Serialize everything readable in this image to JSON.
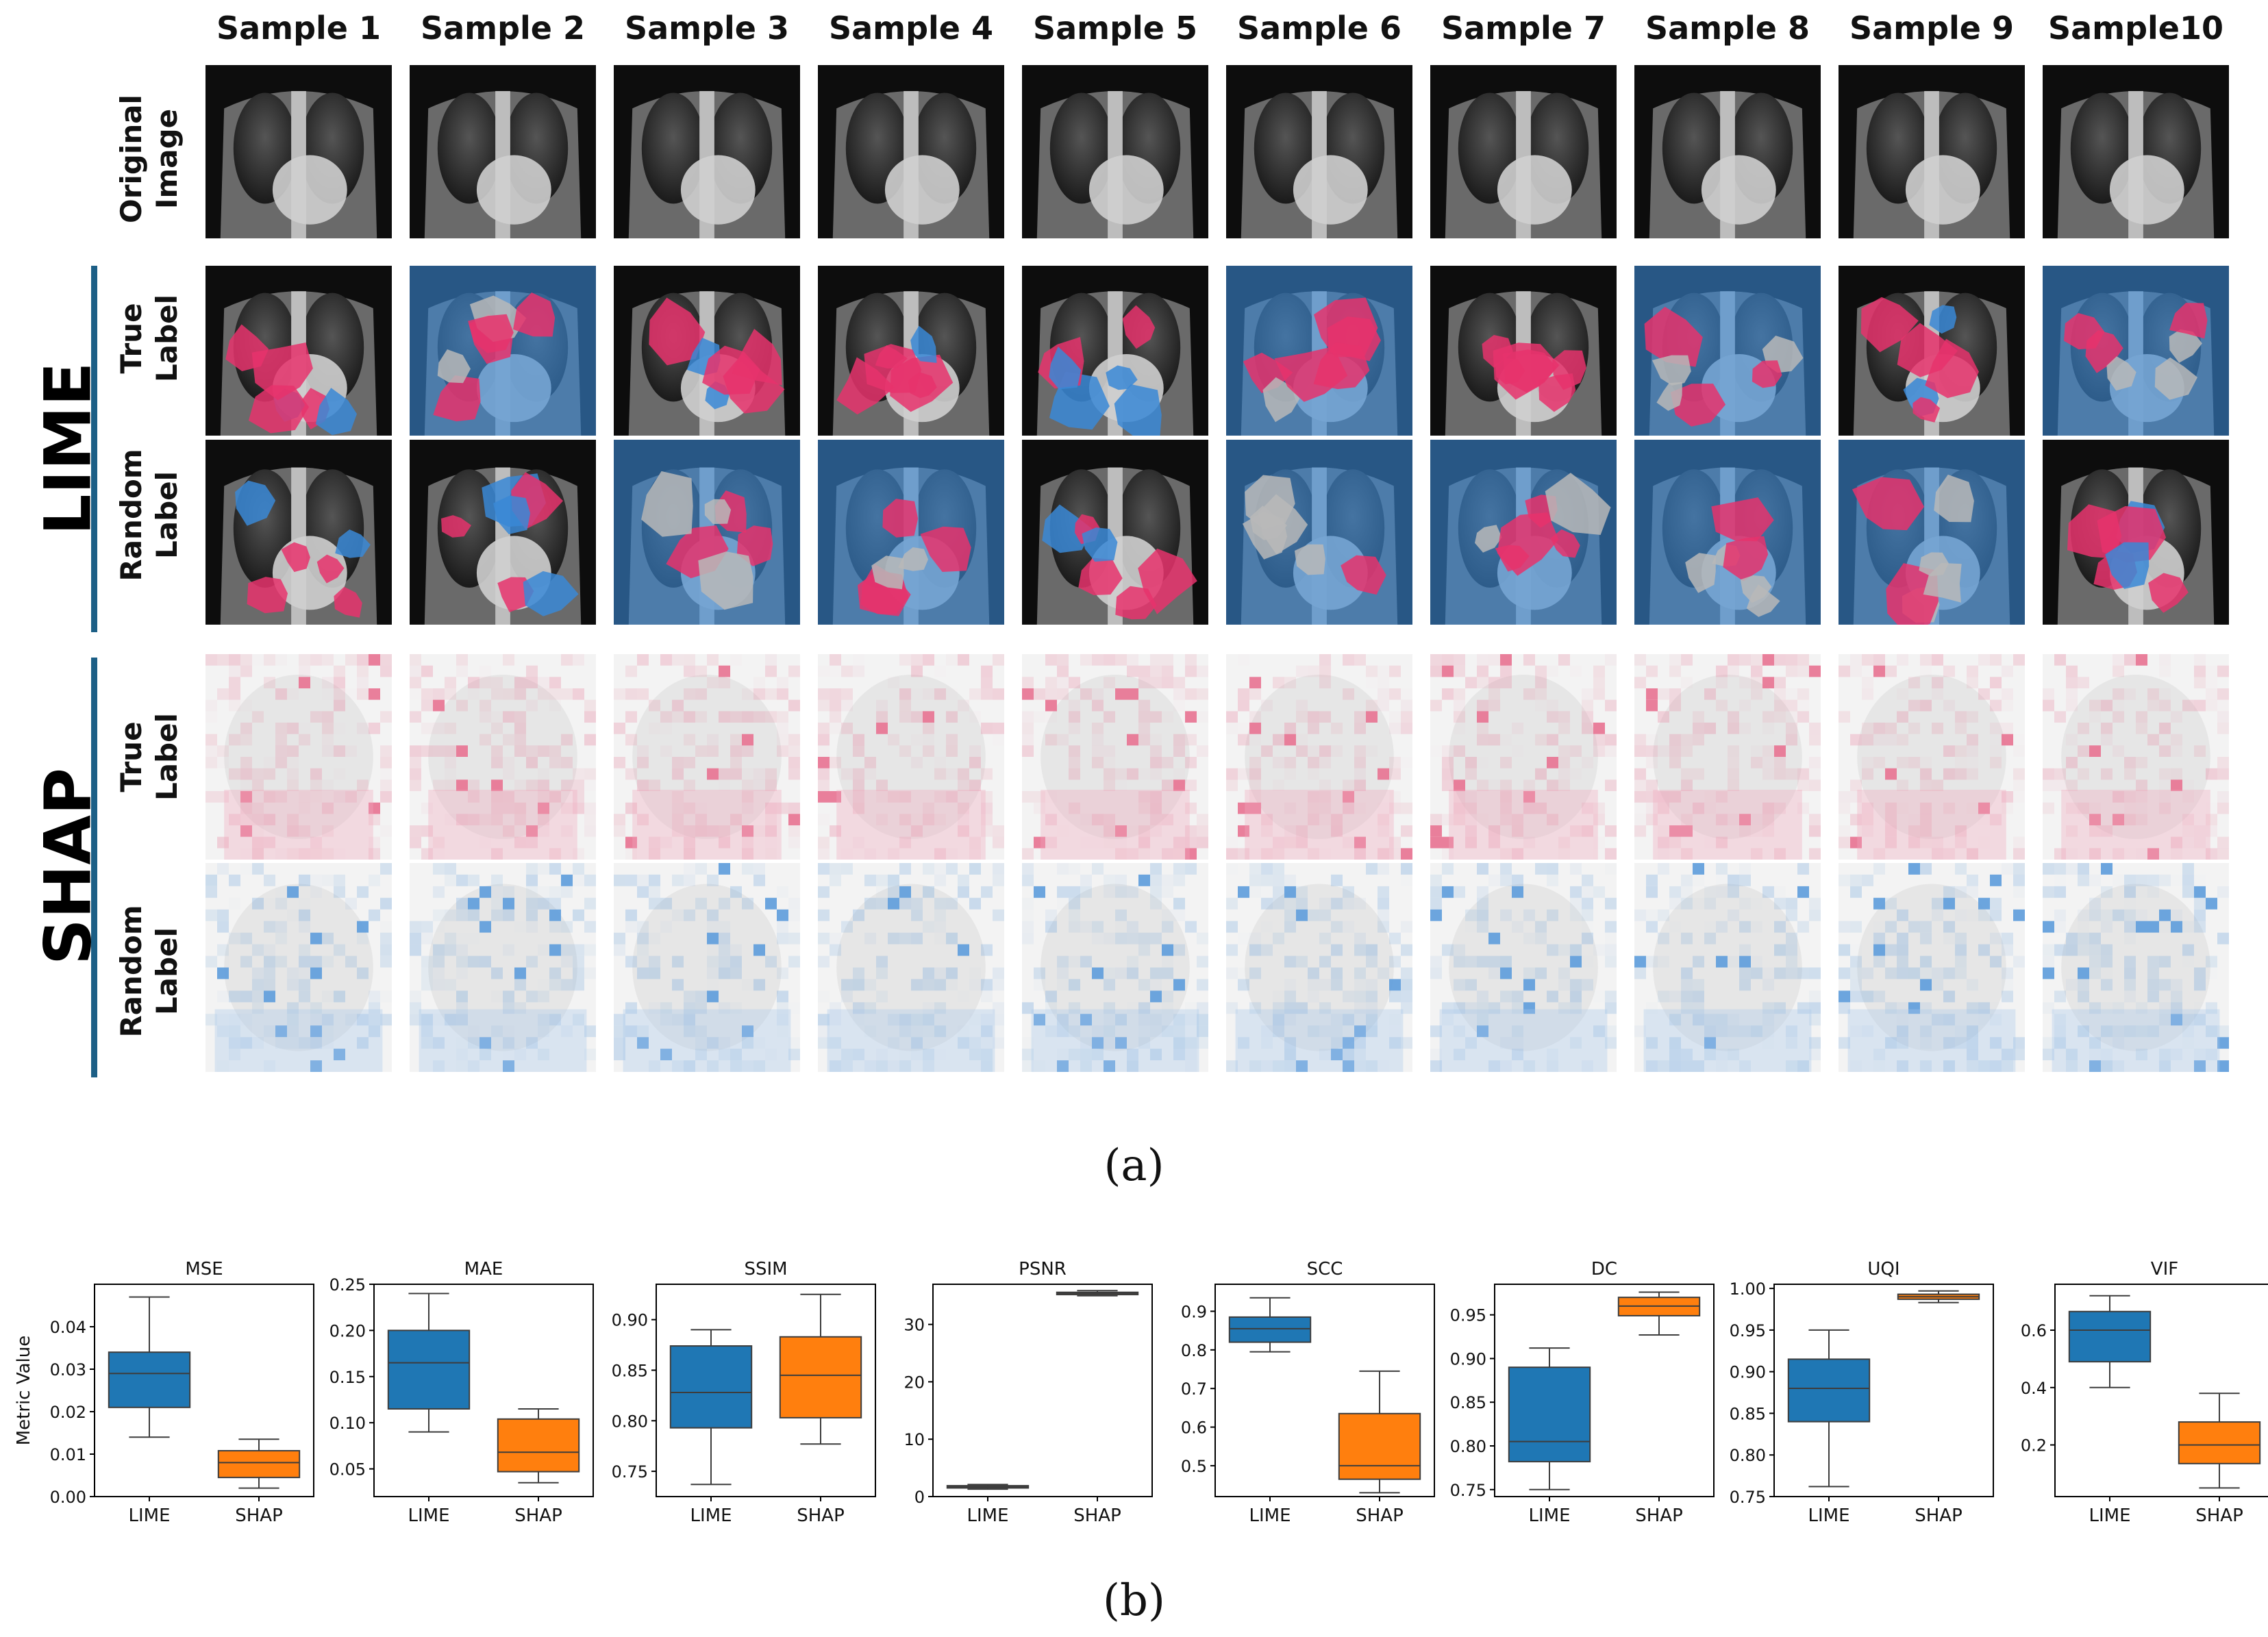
{
  "samples": {
    "headers": [
      "Sample 1",
      "Sample 2",
      "Sample 3",
      "Sample 4",
      "Sample 5",
      "Sample 6",
      "Sample 7",
      "Sample 8",
      "Sample 9",
      "Sample10"
    ]
  },
  "groups": {
    "lime": "LIME",
    "shap": "SHAP"
  },
  "rows": {
    "original": [
      "Original",
      "Image"
    ],
    "lime_true": [
      "True",
      "Label"
    ],
    "lime_random": [
      "Random",
      "Label"
    ],
    "shap_true": [
      "True",
      "Label"
    ],
    "shap_random": [
      "Random",
      "Label"
    ]
  },
  "captions": {
    "a": "(a)",
    "b": "(b)"
  },
  "colors": {
    "lime_blue": "#1f77b4",
    "shap_orange": "#ff7f0e",
    "positive": "#e6336c",
    "negative": "#3a88d6",
    "group_bar": "#1c5f86"
  },
  "chart_data": [
    {
      "type": "box",
      "title": "MSE",
      "ylabel": "Metric Value",
      "categories": [
        "LIME",
        "SHAP"
      ],
      "ylim": [
        0,
        0.05
      ],
      "yticks": [
        0.0,
        0.01,
        0.02,
        0.03,
        0.04
      ],
      "ytick_labels": [
        "0.00",
        "0.01",
        "0.02",
        "0.03",
        "0.04"
      ],
      "boxes": [
        {
          "name": "LIME",
          "min": 0.014,
          "q1": 0.021,
          "median": 0.029,
          "q3": 0.034,
          "max": 0.047
        },
        {
          "name": "SHAP",
          "min": 0.002,
          "q1": 0.0045,
          "median": 0.008,
          "q3": 0.0108,
          "max": 0.0135
        }
      ]
    },
    {
      "type": "box",
      "title": "MAE",
      "ylabel": "",
      "categories": [
        "LIME",
        "SHAP"
      ],
      "ylim": [
        0.02,
        0.25
      ],
      "yticks": [
        0.05,
        0.1,
        0.15,
        0.2,
        0.25
      ],
      "ytick_labels": [
        "0.05",
        "0.10",
        "0.15",
        "0.20",
        "0.25"
      ],
      "boxes": [
        {
          "name": "LIME",
          "min": 0.09,
          "q1": 0.115,
          "median": 0.165,
          "q3": 0.2,
          "max": 0.24
        },
        {
          "name": "SHAP",
          "min": 0.035,
          "q1": 0.047,
          "median": 0.068,
          "q3": 0.104,
          "max": 0.115
        }
      ]
    },
    {
      "type": "box",
      "title": "SSIM",
      "ylabel": "",
      "categories": [
        "LIME",
        "SHAP"
      ],
      "ylim": [
        0.725,
        0.935
      ],
      "yticks": [
        0.75,
        0.8,
        0.85,
        0.9
      ],
      "ytick_labels": [
        "0.75",
        "0.80",
        "0.85",
        "0.90"
      ],
      "boxes": [
        {
          "name": "LIME",
          "min": 0.737,
          "q1": 0.793,
          "median": 0.828,
          "q3": 0.874,
          "max": 0.89
        },
        {
          "name": "SHAP",
          "min": 0.777,
          "q1": 0.803,
          "median": 0.845,
          "q3": 0.883,
          "max": 0.925
        }
      ]
    },
    {
      "type": "box",
      "title": "PSNR",
      "ylabel": "",
      "categories": [
        "LIME",
        "SHAP"
      ],
      "ylim": [
        0,
        37
      ],
      "yticks": [
        0,
        10,
        20,
        30
      ],
      "ytick_labels": [
        "0",
        "10",
        "20",
        "30"
      ],
      "boxes": [
        {
          "name": "LIME",
          "min": 1.3,
          "q1": 1.5,
          "median": 1.7,
          "q3": 1.9,
          "max": 2.1
        },
        {
          "name": "SHAP",
          "min": 35.0,
          "q1": 35.2,
          "median": 35.4,
          "q3": 35.6,
          "max": 35.9
        }
      ]
    },
    {
      "type": "box",
      "title": "SCC",
      "ylabel": "",
      "categories": [
        "LIME",
        "SHAP"
      ],
      "ylim": [
        0.42,
        0.97
      ],
      "yticks": [
        0.5,
        0.6,
        0.7,
        0.8,
        0.9
      ],
      "ytick_labels": [
        "0.5",
        "0.6",
        "0.7",
        "0.8",
        "0.9"
      ],
      "boxes": [
        {
          "name": "LIME",
          "min": 0.795,
          "q1": 0.82,
          "median": 0.855,
          "q3": 0.885,
          "max": 0.935
        },
        {
          "name": "SHAP",
          "min": 0.43,
          "q1": 0.465,
          "median": 0.5,
          "q3": 0.635,
          "max": 0.745
        }
      ]
    },
    {
      "type": "box",
      "title": "DC",
      "ylabel": "",
      "categories": [
        "LIME",
        "SHAP"
      ],
      "ylim": [
        0.742,
        0.985
      ],
      "yticks": [
        0.75,
        0.8,
        0.85,
        0.9,
        0.95
      ],
      "ytick_labels": [
        "0.75",
        "0.80",
        "0.85",
        "0.90",
        "0.95"
      ],
      "boxes": [
        {
          "name": "LIME",
          "min": 0.75,
          "q1": 0.782,
          "median": 0.805,
          "q3": 0.89,
          "max": 0.912
        },
        {
          "name": "SHAP",
          "min": 0.927,
          "q1": 0.949,
          "median": 0.96,
          "q3": 0.97,
          "max": 0.976
        }
      ]
    },
    {
      "type": "box",
      "title": "UQI",
      "ylabel": "",
      "categories": [
        "LIME",
        "SHAP"
      ],
      "ylim": [
        0.75,
        1.005
      ],
      "yticks": [
        0.75,
        0.8,
        0.85,
        0.9,
        0.95,
        1.0
      ],
      "ytick_labels": [
        "0.75",
        "0.80",
        "0.85",
        "0.90",
        "0.95",
        "1.00"
      ],
      "boxes": [
        {
          "name": "LIME",
          "min": 0.762,
          "q1": 0.84,
          "median": 0.88,
          "q3": 0.915,
          "max": 0.95
        },
        {
          "name": "SHAP",
          "min": 0.983,
          "q1": 0.987,
          "median": 0.99,
          "q3": 0.993,
          "max": 0.997
        }
      ]
    },
    {
      "type": "box",
      "title": "VIF",
      "ylabel": "",
      "categories": [
        "LIME",
        "SHAP"
      ],
      "ylim": [
        0.02,
        0.76
      ],
      "yticks": [
        0.2,
        0.4,
        0.6
      ],
      "ytick_labels": [
        "0.2",
        "0.4",
        "0.6"
      ],
      "boxes": [
        {
          "name": "LIME",
          "min": 0.4,
          "q1": 0.49,
          "median": 0.6,
          "q3": 0.665,
          "max": 0.72
        },
        {
          "name": "SHAP",
          "min": 0.05,
          "q1": 0.135,
          "median": 0.2,
          "q3": 0.28,
          "max": 0.38
        }
      ]
    }
  ]
}
